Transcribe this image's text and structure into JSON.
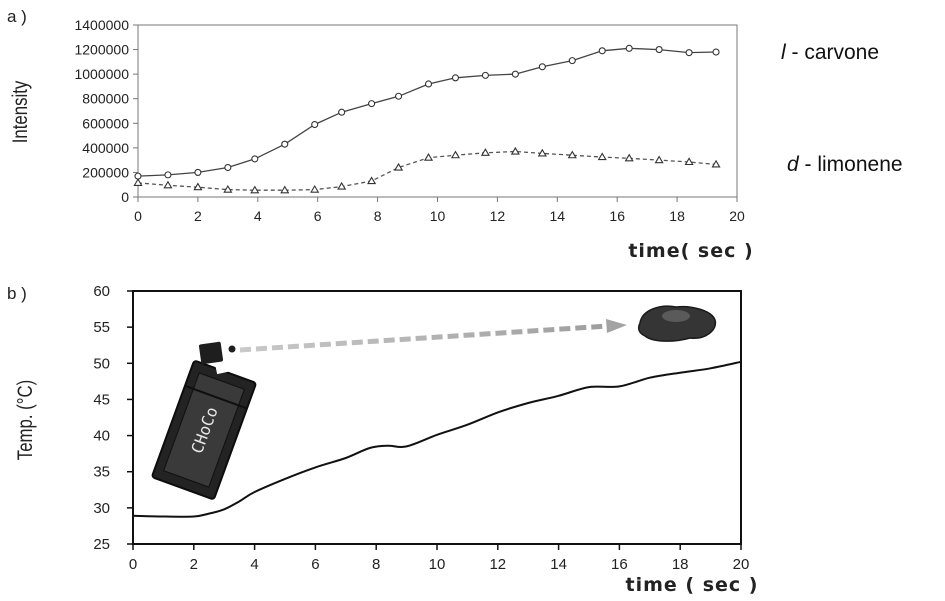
{
  "chart_data": [
    {
      "panel": "a )",
      "type": "line",
      "xlabel": "time( sec )",
      "ylabel": "Intensity",
      "xlim": [
        0,
        20
      ],
      "ylim": [
        0,
        1400000
      ],
      "xticks": [
        "0",
        "2",
        "4",
        "6",
        "8",
        "10",
        "12",
        "14",
        "16",
        "18",
        "20"
      ],
      "yticks": [
        "0",
        "200000",
        "400000",
        "600000",
        "800000",
        "1000000",
        "1200000",
        "1400000"
      ],
      "grid": false,
      "series": [
        {
          "name_prefix": "l",
          "name_rest": " - carvone",
          "style": "solid",
          "marker": "circle",
          "x": [
            0,
            1,
            2,
            3,
            3.9,
            4.9,
            5.9,
            6.8,
            7.8,
            8.7,
            9.7,
            10.6,
            11.6,
            12.6,
            13.5,
            14.5,
            15.5,
            16.4,
            17.4,
            18.4,
            19.3
          ],
          "y": [
            170000,
            180000,
            200000,
            240000,
            310000,
            430000,
            590000,
            690000,
            760000,
            820000,
            920000,
            970000,
            990000,
            1000000,
            1060000,
            1110000,
            1190000,
            1210000,
            1200000,
            1175000,
            1180000
          ]
        },
        {
          "name_prefix": "d",
          "name_rest": " - limonene",
          "style": "dashed",
          "marker": "triangle",
          "x": [
            0,
            1,
            2,
            3,
            3.9,
            4.9,
            5.9,
            6.8,
            7.8,
            8.7,
            9.7,
            10.6,
            11.6,
            12.6,
            13.5,
            14.5,
            15.5,
            16.4,
            17.4,
            18.4,
            19.3
          ],
          "y": [
            115000,
            95000,
            80000,
            60000,
            55000,
            55000,
            60000,
            85000,
            130000,
            240000,
            320000,
            340000,
            360000,
            370000,
            355000,
            340000,
            325000,
            315000,
            300000,
            285000,
            265000
          ]
        }
      ]
    },
    {
      "panel": "b )",
      "type": "line",
      "xlabel": "time ( sec )",
      "ylabel": "Temp. (°C)",
      "xlim": [
        0,
        20
      ],
      "ylim": [
        25,
        60
      ],
      "xticks": [
        "0",
        "2",
        "4",
        "6",
        "8",
        "10",
        "12",
        "14",
        "16",
        "18",
        "20"
      ],
      "yticks": [
        "25",
        "30",
        "35",
        "40",
        "45",
        "50",
        "55",
        "60"
      ],
      "grid": false,
      "illustration_text": "CHoCo",
      "series": [
        {
          "style": "solid",
          "x": [
            0,
            1,
            2,
            2.5,
            3,
            3.5,
            4,
            5,
            6,
            7,
            7.8,
            8.4,
            9,
            10,
            11,
            12,
            13,
            14,
            15,
            16,
            17,
            18,
            19,
            20
          ],
          "y": [
            28.9,
            28.8,
            28.8,
            29.2,
            29.8,
            30.9,
            32.2,
            34.0,
            35.6,
            36.9,
            38.3,
            38.6,
            38.5,
            40.1,
            41.5,
            43.2,
            44.5,
            45.5,
            46.7,
            46.8,
            48.0,
            48.7,
            49.3,
            50.2
          ]
        }
      ]
    }
  ]
}
